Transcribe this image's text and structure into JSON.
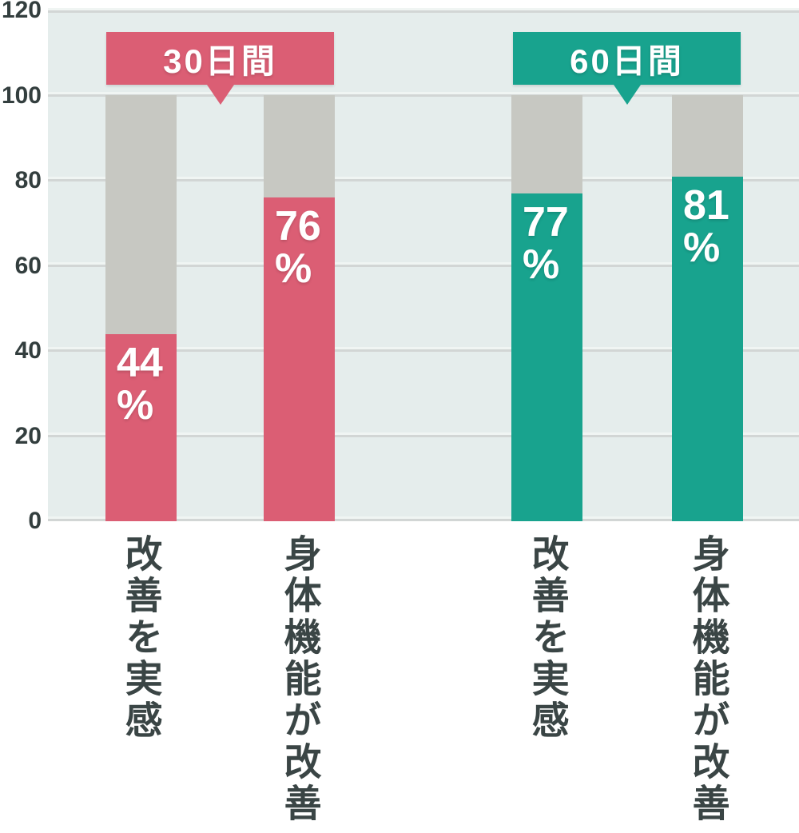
{
  "chart_data": {
    "type": "bar",
    "title": "",
    "ylim": [
      0,
      120
    ],
    "y_ticks": [
      "120",
      "100",
      "80",
      "60",
      "40",
      "20",
      "0"
    ],
    "grid": true,
    "remainder_track_max": 100,
    "groups": [
      {
        "label": "30日間",
        "color": "#db5e74"
      },
      {
        "label": "60日間",
        "color": "#18a38e"
      }
    ],
    "bars": [
      {
        "group": "30日間",
        "category": "改善を実感",
        "value": 44,
        "unit": "%",
        "color": "#db5e74"
      },
      {
        "group": "30日間",
        "category": "身体機能が改善",
        "value": 76,
        "unit": "%",
        "color": "#db5e74"
      },
      {
        "group": "60日間",
        "category": "改善を実感",
        "value": 77,
        "unit": "%",
        "color": "#18a38e"
      },
      {
        "group": "60日間",
        "category": "身体機能が改善",
        "value": 81,
        "unit": "%",
        "color": "#18a38e"
      }
    ],
    "colors": {
      "pink": "#db5e74",
      "teal": "#18a38e",
      "remainder_gray": "#c7c8c2",
      "plot_background": "#e5edec",
      "gridline": "#d2d6d5",
      "axis_text": "#333e3e",
      "category_text": "#3a4545",
      "value_text": "#ffffff"
    }
  }
}
